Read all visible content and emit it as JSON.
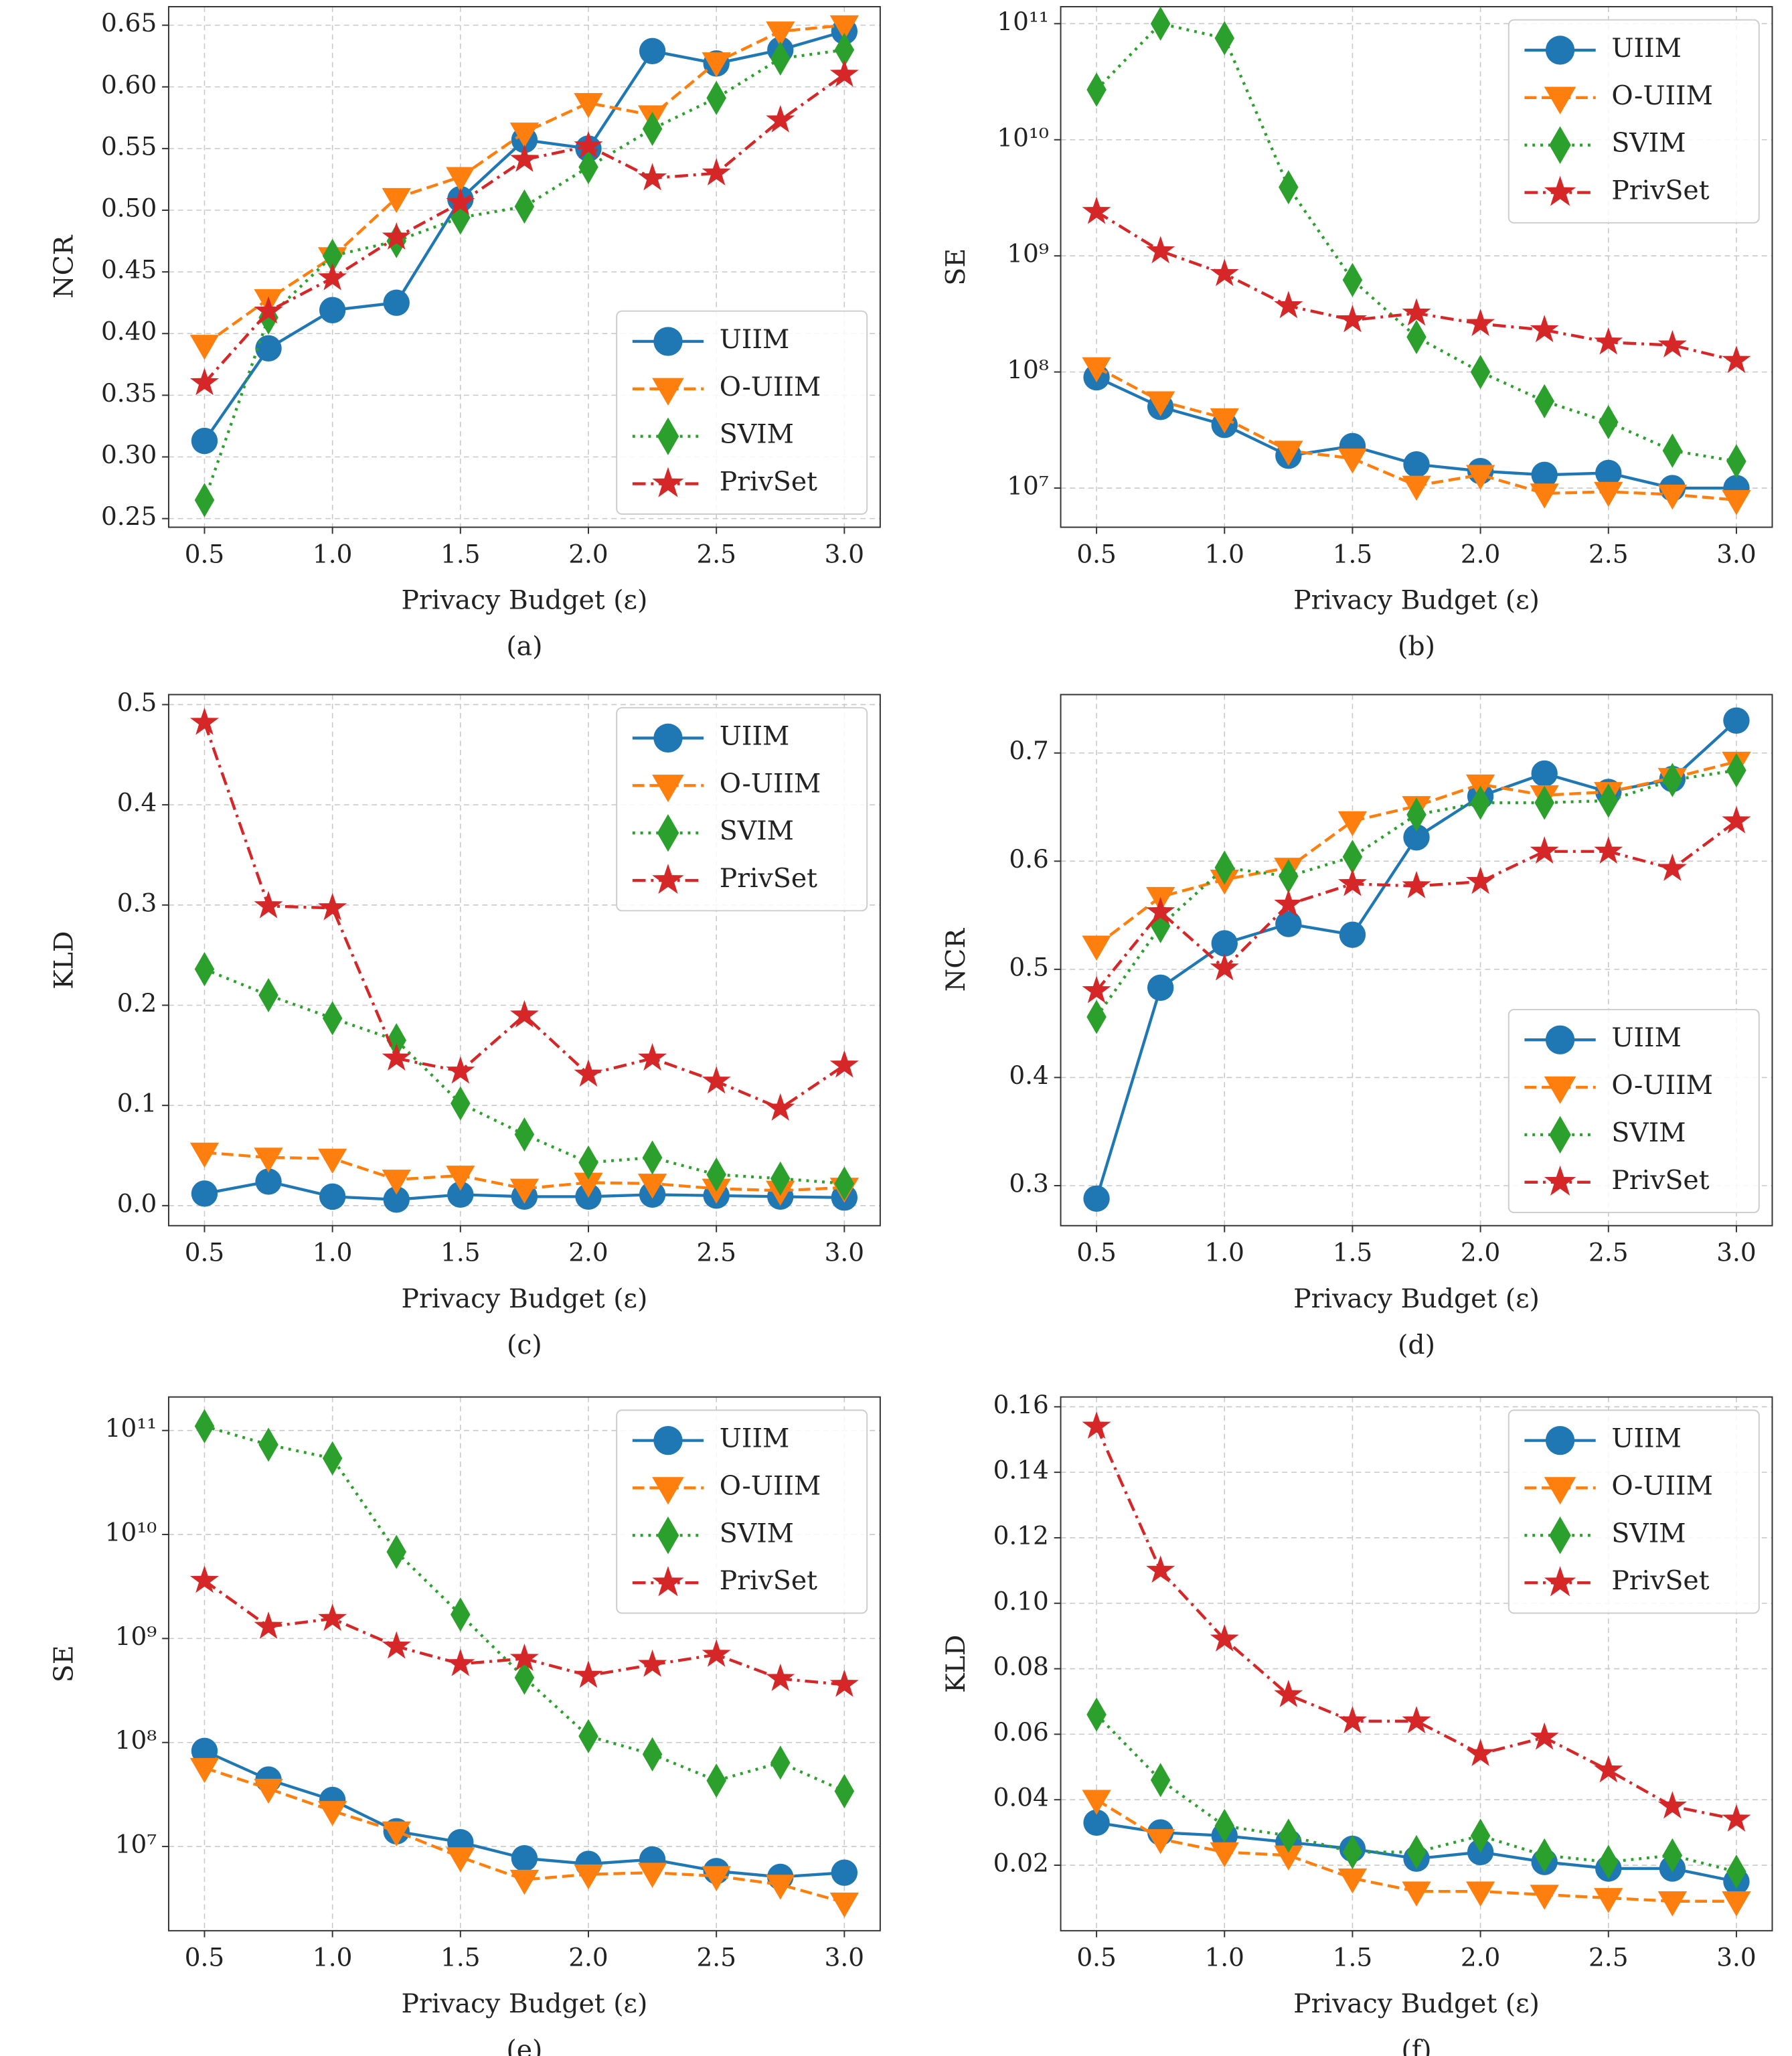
{
  "chart_data": [
    {
      "type": "line",
      "caption": "(a)",
      "xlabel": "Privacy Budget (ε)",
      "ylabel": "NCR",
      "legend": "lower right",
      "grid": true,
      "x": [
        0.5,
        0.75,
        1.0,
        1.25,
        1.5,
        1.75,
        2.0,
        2.25,
        2.5,
        2.75,
        3.0
      ],
      "xlim": [
        0.36,
        3.14
      ],
      "xticks": [
        0.5,
        {
          "value": 1,
          "label": "1.0"
        },
        1.5,
        {
          "value": 2,
          "label": "2.0"
        },
        2.5,
        {
          "value": 3,
          "label": "3.0"
        }
      ],
      "ylim": [
        0.243,
        0.665
      ],
      "yticks": [
        0.25,
        {
          "value": 0.3,
          "label": "0.30"
        },
        0.35,
        {
          "value": 0.4,
          "label": "0.40"
        },
        0.45,
        {
          "value": 0.5,
          "label": "0.50"
        },
        0.55,
        {
          "value": 0.6,
          "label": "0.60"
        },
        0.65
      ],
      "series": [
        {
          "name": "UIIM",
          "color": "#1f77b4",
          "marker": "circle",
          "linestyle": "solid",
          "values": [
            0.313,
            0.388,
            0.419,
            0.425,
            0.509,
            0.557,
            0.55,
            0.629,
            0.619,
            0.63,
            0.645
          ]
        },
        {
          "name": "O-UIIM",
          "color": "#ff7f0e",
          "marker": "triangle-down",
          "linestyle": "dashed",
          "values": [
            0.391,
            0.428,
            0.462,
            0.51,
            0.527,
            0.563,
            0.587,
            0.577,
            0.62,
            0.645,
            0.65
          ]
        },
        {
          "name": "SVIM",
          "color": "#2ca02c",
          "marker": "diamond",
          "linestyle": "dotted",
          "values": [
            0.265,
            0.413,
            0.463,
            0.475,
            0.494,
            0.503,
            0.535,
            0.566,
            0.591,
            0.623,
            0.63
          ]
        },
        {
          "name": "PrivSet",
          "color": "#d62728",
          "marker": "star",
          "linestyle": "dashdot",
          "values": [
            0.36,
            0.418,
            0.445,
            0.478,
            0.506,
            0.541,
            0.552,
            0.526,
            0.53,
            0.573,
            0.61
          ]
        }
      ]
    },
    {
      "type": "line",
      "caption": "(b)",
      "xlabel": "Privacy Budget (ε)",
      "ylabel": "SE",
      "legend": "upper right",
      "grid": true,
      "log_y": true,
      "x": [
        0.5,
        0.75,
        1.0,
        1.25,
        1.5,
        1.75,
        2.0,
        2.25,
        2.5,
        2.75,
        3.0
      ],
      "xlim": [
        0.36,
        3.14
      ],
      "xticks": [
        0.5,
        {
          "value": 1,
          "label": "1.0"
        },
        1.5,
        {
          "value": 2,
          "label": "2.0"
        },
        2.5,
        {
          "value": 3,
          "label": "3.0"
        }
      ],
      "ylim": [
        4600000,
        140000000000
      ],
      "yticks": [
        {
          "value": 10000000,
          "label": "10⁷"
        },
        {
          "value": 100000000,
          "label": "10⁸"
        },
        {
          "value": 1000000000,
          "label": "10⁹"
        },
        {
          "value": 10000000000,
          "label": "10¹⁰"
        },
        {
          "value": 100000000000,
          "label": "10¹¹"
        }
      ],
      "series": [
        {
          "name": "UIIM",
          "color": "#1f77b4",
          "marker": "circle",
          "linestyle": "solid",
          "values": [
            90000000,
            50000000,
            35000000,
            19000000,
            23000000,
            16000000,
            14000000,
            13000000,
            13500000,
            10000000,
            10000000
          ]
        },
        {
          "name": "O-UIIM",
          "color": "#ff7f0e",
          "marker": "triangle-down",
          "linestyle": "dashed",
          "values": [
            110000000,
            56000000,
            40000000,
            21000000,
            18000000,
            10500000,
            13000000,
            9000000,
            9300000,
            8800000,
            7900000
          ]
        },
        {
          "name": "SVIM",
          "color": "#2ca02c",
          "marker": "diamond",
          "linestyle": "dotted",
          "values": [
            27000000000,
            100000000000,
            75000000000,
            3900000000,
            620000000,
            200000000,
            100000000,
            56000000,
            37000000,
            21000000,
            17000000
          ]
        },
        {
          "name": "PrivSet",
          "color": "#d62728",
          "marker": "star",
          "linestyle": "dashdot",
          "values": [
            2400000000,
            1100000000,
            700000000,
            370000000,
            280000000,
            320000000,
            260000000,
            230000000,
            180000000,
            170000000,
            125000000
          ]
        }
      ]
    },
    {
      "type": "line",
      "caption": "(c)",
      "xlabel": "Privacy Budget (ε)",
      "ylabel": "KLD",
      "legend": "upper right",
      "grid": true,
      "x": [
        0.5,
        0.75,
        1.0,
        1.25,
        1.5,
        1.75,
        2.0,
        2.25,
        2.5,
        2.75,
        3.0
      ],
      "xlim": [
        0.36,
        3.14
      ],
      "xticks": [
        0.5,
        {
          "value": 1,
          "label": "1.0"
        },
        1.5,
        {
          "value": 2,
          "label": "2.0"
        },
        2.5,
        {
          "value": 3,
          "label": "3.0"
        }
      ],
      "ylim": [
        -0.02,
        0.51
      ],
      "yticks": [
        {
          "value": 0,
          "label": "0.0"
        },
        0.1,
        0.2,
        0.3,
        0.4,
        0.5
      ],
      "series": [
        {
          "name": "UIIM",
          "color": "#1f77b4",
          "marker": "circle",
          "linestyle": "solid",
          "values": [
            0.012,
            0.024,
            0.009,
            0.006,
            0.011,
            0.009,
            0.009,
            0.011,
            0.01,
            0.009,
            0.008
          ]
        },
        {
          "name": "O-UIIM",
          "color": "#ff7f0e",
          "marker": "triangle-down",
          "linestyle": "dashed",
          "values": [
            0.053,
            0.048,
            0.047,
            0.026,
            0.03,
            0.017,
            0.023,
            0.022,
            0.017,
            0.015,
            0.018
          ]
        },
        {
          "name": "SVIM",
          "color": "#2ca02c",
          "marker": "diamond",
          "linestyle": "dotted",
          "values": [
            0.236,
            0.21,
            0.187,
            0.165,
            0.102,
            0.071,
            0.043,
            0.048,
            0.031,
            0.027,
            0.022
          ]
        },
        {
          "name": "PrivSet",
          "color": "#d62728",
          "marker": "star",
          "linestyle": "dashdot",
          "values": [
            0.482,
            0.299,
            0.297,
            0.147,
            0.134,
            0.19,
            0.131,
            0.147,
            0.124,
            0.097,
            0.14
          ]
        }
      ]
    },
    {
      "type": "line",
      "caption": "(d)",
      "xlabel": "Privacy Budget (ε)",
      "ylabel": "NCR",
      "legend": "lower right",
      "grid": true,
      "x": [
        0.5,
        0.75,
        1.0,
        1.25,
        1.5,
        1.75,
        2.0,
        2.25,
        2.5,
        2.75,
        3.0
      ],
      "xlim": [
        0.36,
        3.14
      ],
      "xticks": [
        0.5,
        {
          "value": 1,
          "label": "1.0"
        },
        1.5,
        {
          "value": 2,
          "label": "2.0"
        },
        2.5,
        {
          "value": 3,
          "label": "3.0"
        }
      ],
      "ylim": [
        0.263,
        0.754
      ],
      "yticks": [
        0.3,
        0.4,
        0.5,
        0.6,
        0.7
      ],
      "series": [
        {
          "name": "UIIM",
          "color": "#1f77b4",
          "marker": "circle",
          "linestyle": "solid",
          "values": [
            0.288,
            0.483,
            0.524,
            0.542,
            0.532,
            0.622,
            0.66,
            0.681,
            0.664,
            0.676,
            0.73
          ]
        },
        {
          "name": "O-UIIM",
          "color": "#ff7f0e",
          "marker": "triangle-down",
          "linestyle": "dashed",
          "values": [
            0.522,
            0.567,
            0.583,
            0.594,
            0.637,
            0.651,
            0.671,
            0.661,
            0.664,
            0.677,
            0.692
          ]
        },
        {
          "name": "SVIM",
          "color": "#2ca02c",
          "marker": "diamond",
          "linestyle": "dotted",
          "values": [
            0.456,
            0.54,
            0.594,
            0.586,
            0.604,
            0.643,
            0.654,
            0.654,
            0.656,
            0.675,
            0.684
          ]
        },
        {
          "name": "PrivSet",
          "color": "#d62728",
          "marker": "star",
          "linestyle": "dashdot",
          "values": [
            0.48,
            0.553,
            0.501,
            0.56,
            0.579,
            0.577,
            0.581,
            0.609,
            0.609,
            0.593,
            0.637
          ]
        }
      ]
    },
    {
      "type": "line",
      "caption": "(e)",
      "xlabel": "Privacy Budget (ε)",
      "ylabel": "SE",
      "legend": "upper right",
      "grid": true,
      "log_y": true,
      "x": [
        0.5,
        0.75,
        1.0,
        1.25,
        1.5,
        1.75,
        2.0,
        2.25,
        2.5,
        2.75,
        3.0
      ],
      "xlim": [
        0.36,
        3.14
      ],
      "xticks": [
        0.5,
        {
          "value": 1,
          "label": "1.0"
        },
        1.5,
        {
          "value": 2,
          "label": "2.0"
        },
        2.5,
        {
          "value": 3,
          "label": "3.0"
        }
      ],
      "ylim": [
        1550000,
        210000000000
      ],
      "yticks": [
        {
          "value": 10000000,
          "label": "10⁷"
        },
        {
          "value": 100000000,
          "label": "10⁸"
        },
        {
          "value": 1000000000,
          "label": "10⁹"
        },
        {
          "value": 10000000000,
          "label": "10¹⁰"
        },
        {
          "value": 100000000000,
          "label": "10¹¹"
        }
      ],
      "series": [
        {
          "name": "UIIM",
          "color": "#1f77b4",
          "marker": "circle",
          "linestyle": "solid",
          "values": [
            83000000,
            44000000,
            28000000,
            14000000,
            11000000,
            7700000,
            6800000,
            7500000,
            5800000,
            5100000,
            5600000
          ]
        },
        {
          "name": "O-UIIM",
          "color": "#ff7f0e",
          "marker": "triangle-down",
          "linestyle": "dashed",
          "values": [
            57000000,
            36000000,
            22000000,
            14000000,
            7900000,
            4800000,
            5400000,
            5600000,
            5200000,
            4300000,
            2900000
          ]
        },
        {
          "name": "SVIM",
          "color": "#2ca02c",
          "marker": "diamond",
          "linestyle": "dotted",
          "values": [
            110000000000,
            73000000000,
            54000000000,
            6800000000,
            1700000000,
            420000000,
            115000000,
            77000000,
            43000000,
            64000000,
            34000000
          ]
        },
        {
          "name": "PrivSet",
          "color": "#d62728",
          "marker": "star",
          "linestyle": "dashdot",
          "values": [
            3600000000,
            1300000000,
            1550000000,
            840000000,
            570000000,
            640000000,
            440000000,
            560000000,
            700000000,
            410000000,
            360000000
          ]
        }
      ]
    },
    {
      "type": "line",
      "caption": "(f)",
      "xlabel": "Privacy Budget (ε)",
      "ylabel": "KLD",
      "legend": "upper right",
      "grid": true,
      "x": [
        0.5,
        0.75,
        1.0,
        1.25,
        1.5,
        1.75,
        2.0,
        2.25,
        2.5,
        2.75,
        3.0
      ],
      "xlim": [
        0.36,
        3.14
      ],
      "xticks": [
        0.5,
        {
          "value": 1,
          "label": "1.0"
        },
        1.5,
        {
          "value": 2,
          "label": "2.0"
        },
        2.5,
        {
          "value": 3,
          "label": "3.0"
        }
      ],
      "ylim": [
        0.0,
        0.163
      ],
      "yticks": [
        0.02,
        0.04,
        0.06,
        0.08,
        {
          "value": 0.1,
          "label": "0.10"
        },
        0.12,
        0.14,
        0.16
      ],
      "series": [
        {
          "name": "UIIM",
          "color": "#1f77b4",
          "marker": "circle",
          "linestyle": "solid",
          "values": [
            0.033,
            0.03,
            0.029,
            0.027,
            0.025,
            0.022,
            0.024,
            0.021,
            0.019,
            0.019,
            0.015
          ]
        },
        {
          "name": "O-UIIM",
          "color": "#ff7f0e",
          "marker": "triangle-down",
          "linestyle": "dashed",
          "values": [
            0.04,
            0.028,
            0.024,
            0.023,
            0.016,
            0.012,
            0.012,
            0.011,
            0.01,
            0.009,
            0.009
          ]
        },
        {
          "name": "SVIM",
          "color": "#2ca02c",
          "marker": "diamond",
          "linestyle": "dotted",
          "values": [
            0.066,
            0.046,
            0.032,
            0.029,
            0.024,
            0.024,
            0.029,
            0.023,
            0.021,
            0.023,
            0.018
          ]
        },
        {
          "name": "PrivSet",
          "color": "#d62728",
          "marker": "star",
          "linestyle": "dashdot",
          "values": [
            0.154,
            0.11,
            0.089,
            0.072,
            0.064,
            0.064,
            0.054,
            0.059,
            0.049,
            0.038,
            0.034
          ]
        }
      ]
    }
  ]
}
